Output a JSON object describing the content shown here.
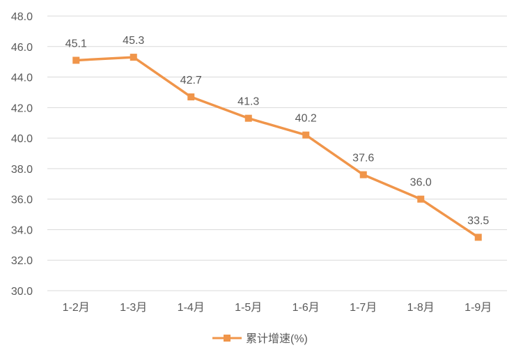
{
  "chart_data": {
    "type": "line",
    "title": "",
    "xlabel": "",
    "ylabel": "",
    "categories": [
      "1-2月",
      "1-3月",
      "1-4月",
      "1-5月",
      "1-6月",
      "1-7月",
      "1-8月",
      "1-9月"
    ],
    "series": [
      {
        "name": "累计增速(%)",
        "values": [
          45.1,
          45.3,
          42.7,
          41.3,
          40.2,
          37.6,
          36.0,
          33.5
        ],
        "labels": [
          "45.1",
          "45.3",
          "42.7",
          "41.3",
          "40.2",
          "37.6",
          "36.0",
          "33.5"
        ],
        "color": "#F0954A",
        "marker": "square"
      }
    ],
    "ylim": [
      30,
      48
    ],
    "yticks": [
      "30.0",
      "32.0",
      "34.0",
      "36.0",
      "38.0",
      "40.0",
      "42.0",
      "44.0",
      "46.0",
      "48.0"
    ],
    "grid": true,
    "legend": "bottom"
  },
  "colors": {
    "grid": "#D9D9D9",
    "text": "#595959",
    "line": "#F0954A"
  }
}
